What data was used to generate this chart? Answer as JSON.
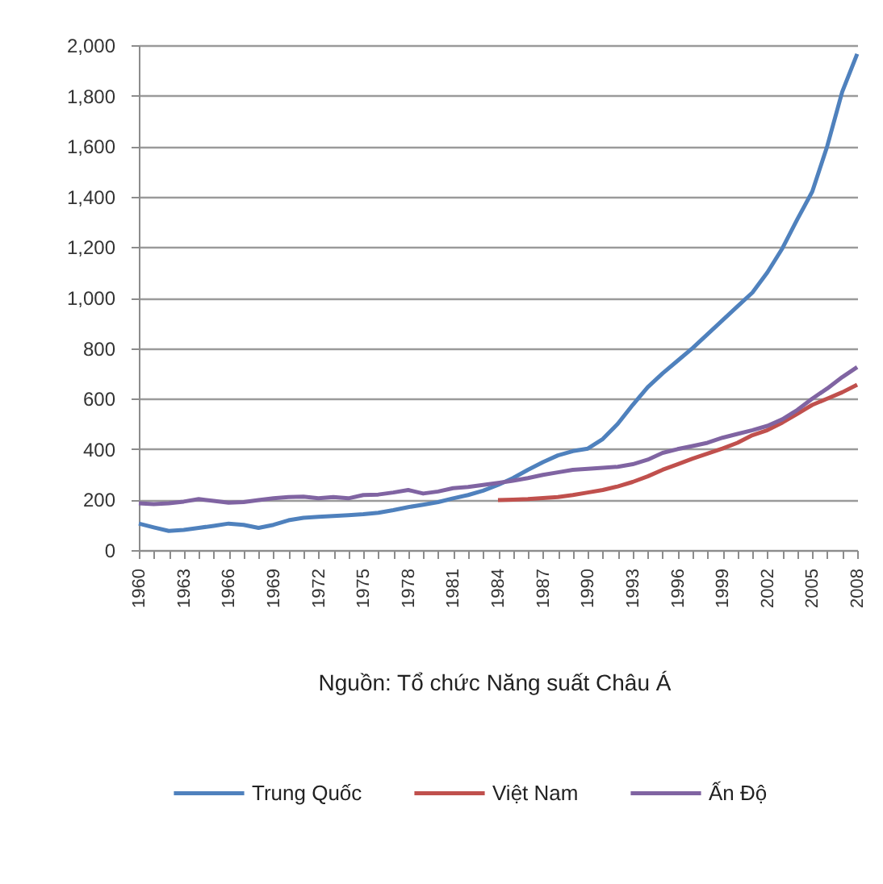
{
  "chart_data": {
    "type": "line",
    "x": [
      1960,
      1961,
      1962,
      1963,
      1964,
      1965,
      1966,
      1967,
      1968,
      1969,
      1970,
      1971,
      1972,
      1973,
      1974,
      1975,
      1976,
      1977,
      1978,
      1979,
      1980,
      1981,
      1982,
      1983,
      1984,
      1985,
      1986,
      1987,
      1988,
      1989,
      1990,
      1991,
      1992,
      1993,
      1994,
      1995,
      1996,
      1997,
      1998,
      1999,
      2000,
      2001,
      2002,
      2003,
      2004,
      2005,
      2006,
      2007,
      2008
    ],
    "series": [
      {
        "name": "Trung Quốc",
        "color": "#4f81bd",
        "values": [
          105,
          90,
          76,
          80,
          88,
          96,
          105,
          100,
          88,
          100,
          118,
          128,
          132,
          135,
          138,
          142,
          148,
          158,
          170,
          180,
          190,
          205,
          218,
          235,
          258,
          285,
          318,
          348,
          375,
          392,
          402,
          440,
          500,
          575,
          645,
          700,
          750,
          800,
          855,
          910,
          965,
          1020,
          1100,
          1195,
          1310,
          1420,
          1600,
          1815,
          1965
        ]
      },
      {
        "name": "Việt Nam",
        "color": "#c0504d",
        "values": [
          null,
          null,
          null,
          null,
          null,
          null,
          null,
          null,
          null,
          null,
          null,
          null,
          null,
          null,
          null,
          null,
          null,
          null,
          null,
          null,
          null,
          null,
          null,
          null,
          198,
          200,
          202,
          206,
          210,
          218,
          228,
          238,
          252,
          270,
          292,
          318,
          340,
          362,
          382,
          402,
          425,
          455,
          475,
          505,
          540,
          575,
          600,
          625,
          655
        ]
      },
      {
        "name": "Ấn Độ",
        "color": "#8064a2",
        "values": [
          185,
          182,
          185,
          192,
          202,
          195,
          188,
          190,
          198,
          205,
          210,
          212,
          205,
          210,
          205,
          218,
          220,
          228,
          238,
          224,
          232,
          245,
          250,
          258,
          266,
          275,
          285,
          298,
          308,
          318,
          322,
          326,
          330,
          340,
          358,
          385,
          400,
          412,
          425,
          445,
          460,
          475,
          492,
          518,
          555,
          600,
          640,
          685,
          725
        ]
      }
    ],
    "xlim": [
      1960,
      2008
    ],
    "xticks": [
      1960,
      {
        "value": 1961,
        "label": null
      },
      {
        "value": 1962,
        "label": null
      },
      1963,
      {
        "value": 1964,
        "label": null
      },
      {
        "value": 1965,
        "label": null
      },
      1966,
      {
        "value": 1967,
        "label": null
      },
      {
        "value": 1968,
        "label": null
      },
      1969,
      {
        "value": 1970,
        "label": null
      },
      {
        "value": 1971,
        "label": null
      },
      1972,
      {
        "value": 1973,
        "label": null
      },
      {
        "value": 1974,
        "label": null
      },
      1975,
      {
        "value": 1976,
        "label": null
      },
      {
        "value": 1977,
        "label": null
      },
      1978,
      {
        "value": 1979,
        "label": null
      },
      {
        "value": 1980,
        "label": null
      },
      1981,
      {
        "value": 1982,
        "label": null
      },
      {
        "value": 1983,
        "label": null
      },
      1984,
      {
        "value": 1985,
        "label": null
      },
      {
        "value": 1986,
        "label": null
      },
      1987,
      {
        "value": 1988,
        "label": null
      },
      {
        "value": 1989,
        "label": null
      },
      1990,
      {
        "value": 1991,
        "label": null
      },
      {
        "value": 1992,
        "label": null
      },
      1993,
      {
        "value": 1994,
        "label": null
      },
      {
        "value": 1995,
        "label": null
      },
      1996,
      {
        "value": 1997,
        "label": null
      },
      {
        "value": 1998,
        "label": null
      },
      1999,
      {
        "value": 2000,
        "label": null
      },
      {
        "value": 2001,
        "label": null
      },
      2002,
      {
        "value": 2003,
        "label": null
      },
      {
        "value": 2004,
        "label": null
      },
      2005,
      {
        "value": 2006,
        "label": null
      },
      {
        "value": 2007,
        "label": null
      },
      2008
    ],
    "ylim": [
      0,
      2000
    ],
    "yticks": [
      0,
      200,
      400,
      600,
      800,
      {
        "value": 1000,
        "label": "1,000"
      },
      {
        "value": 1200,
        "label": "1,200"
      },
      {
        "value": 1400,
        "label": "1,400"
      },
      {
        "value": 1600,
        "label": "1,600"
      },
      {
        "value": 1800,
        "label": "1,800"
      },
      {
        "value": 2000,
        "label": "2,000"
      }
    ],
    "grid": "y",
    "legend": "bottom",
    "marker": "none",
    "line_style": "solid",
    "annotations": [
      "Nguồn: Tổ chức Năng suất Châu Á"
    ]
  }
}
